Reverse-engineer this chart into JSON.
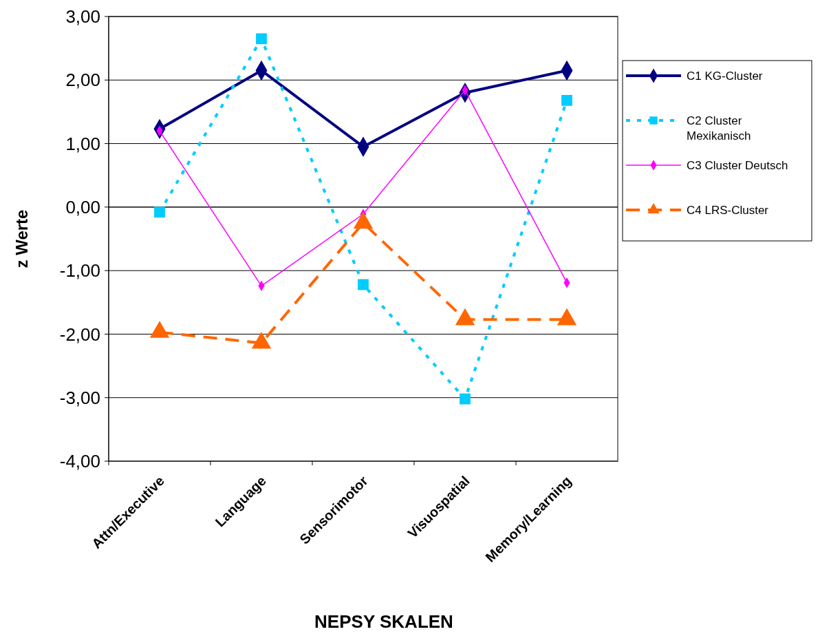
{
  "chart_data": {
    "type": "line",
    "xlabel": "NEPSY SKALEN",
    "ylabel": "z Werte",
    "categories": [
      "Attn/Executive",
      "Language",
      "Sensorimotor",
      "Visuospatial",
      "Memory/Learning"
    ],
    "series": [
      {
        "name": "C1 KG-Cluster",
        "color": "#000080",
        "values": [
          1.23,
          2.15,
          0.95,
          1.8,
          2.15
        ],
        "marker": "diamond",
        "line_style": "solid"
      },
      {
        "name": "C2 Cluster Mexikanisch",
        "color": "#00ccff",
        "values": [
          -0.08,
          2.65,
          -1.22,
          -3.02,
          1.68
        ],
        "marker": "square",
        "line_style": "dotted"
      },
      {
        "name": "C3 Cluster Deutsch",
        "color": "#ff00ff",
        "values": [
          1.2,
          -1.24,
          -0.11,
          1.84,
          -1.19
        ],
        "marker": "diamond",
        "line_style": "solid"
      },
      {
        "name": "C4 LRS-Cluster",
        "color": "#ff6600",
        "values": [
          -1.97,
          -2.14,
          -0.25,
          -1.77,
          -1.77
        ],
        "marker": "triangle",
        "line_style": "dashed"
      }
    ],
    "ylim": [
      -4,
      3
    ],
    "yticks": [
      {
        "value": -4,
        "label": "-4,00"
      },
      {
        "value": -3,
        "label": "-3,00"
      },
      {
        "value": -2,
        "label": "-2,00"
      },
      {
        "value": -1,
        "label": "-1,00"
      },
      {
        "value": 0,
        "label": "0,00"
      },
      {
        "value": 1,
        "label": "1,00"
      },
      {
        "value": 2,
        "label": "2,00"
      },
      {
        "value": 3,
        "label": "3,00"
      }
    ],
    "grid": "y",
    "legend": "right"
  }
}
